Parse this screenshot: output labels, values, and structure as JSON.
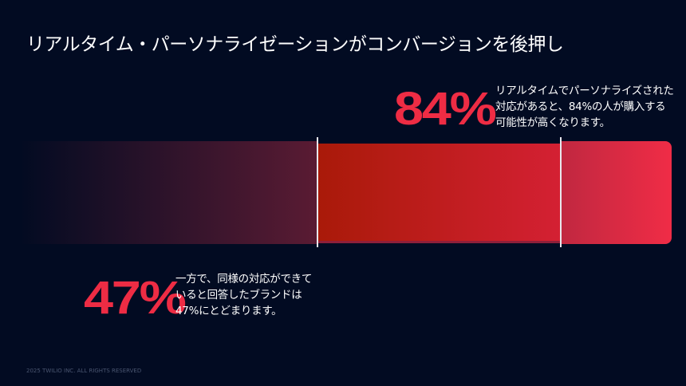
{
  "title": "リアルタイム・パーソナライゼーションがコンバージョンを後押し",
  "stat_consumers": {
    "value": "84%",
    "percent": 84,
    "lines": [
      "リアルタイムでパーソナライズされた",
      "対応があると、84%の人が購入する",
      "可能性が高くなります。"
    ]
  },
  "stat_brands": {
    "value": "47%",
    "percent": 47,
    "lines": [
      "一方で、同様の対応ができて",
      "いると回答したブランドは",
      "47%にとどまります。"
    ]
  },
  "colors": {
    "background": "#020b22",
    "accent": "#ee2c44"
  },
  "footer": "2025 TWILIO INC. ALL RIGHTS RESERVED"
}
